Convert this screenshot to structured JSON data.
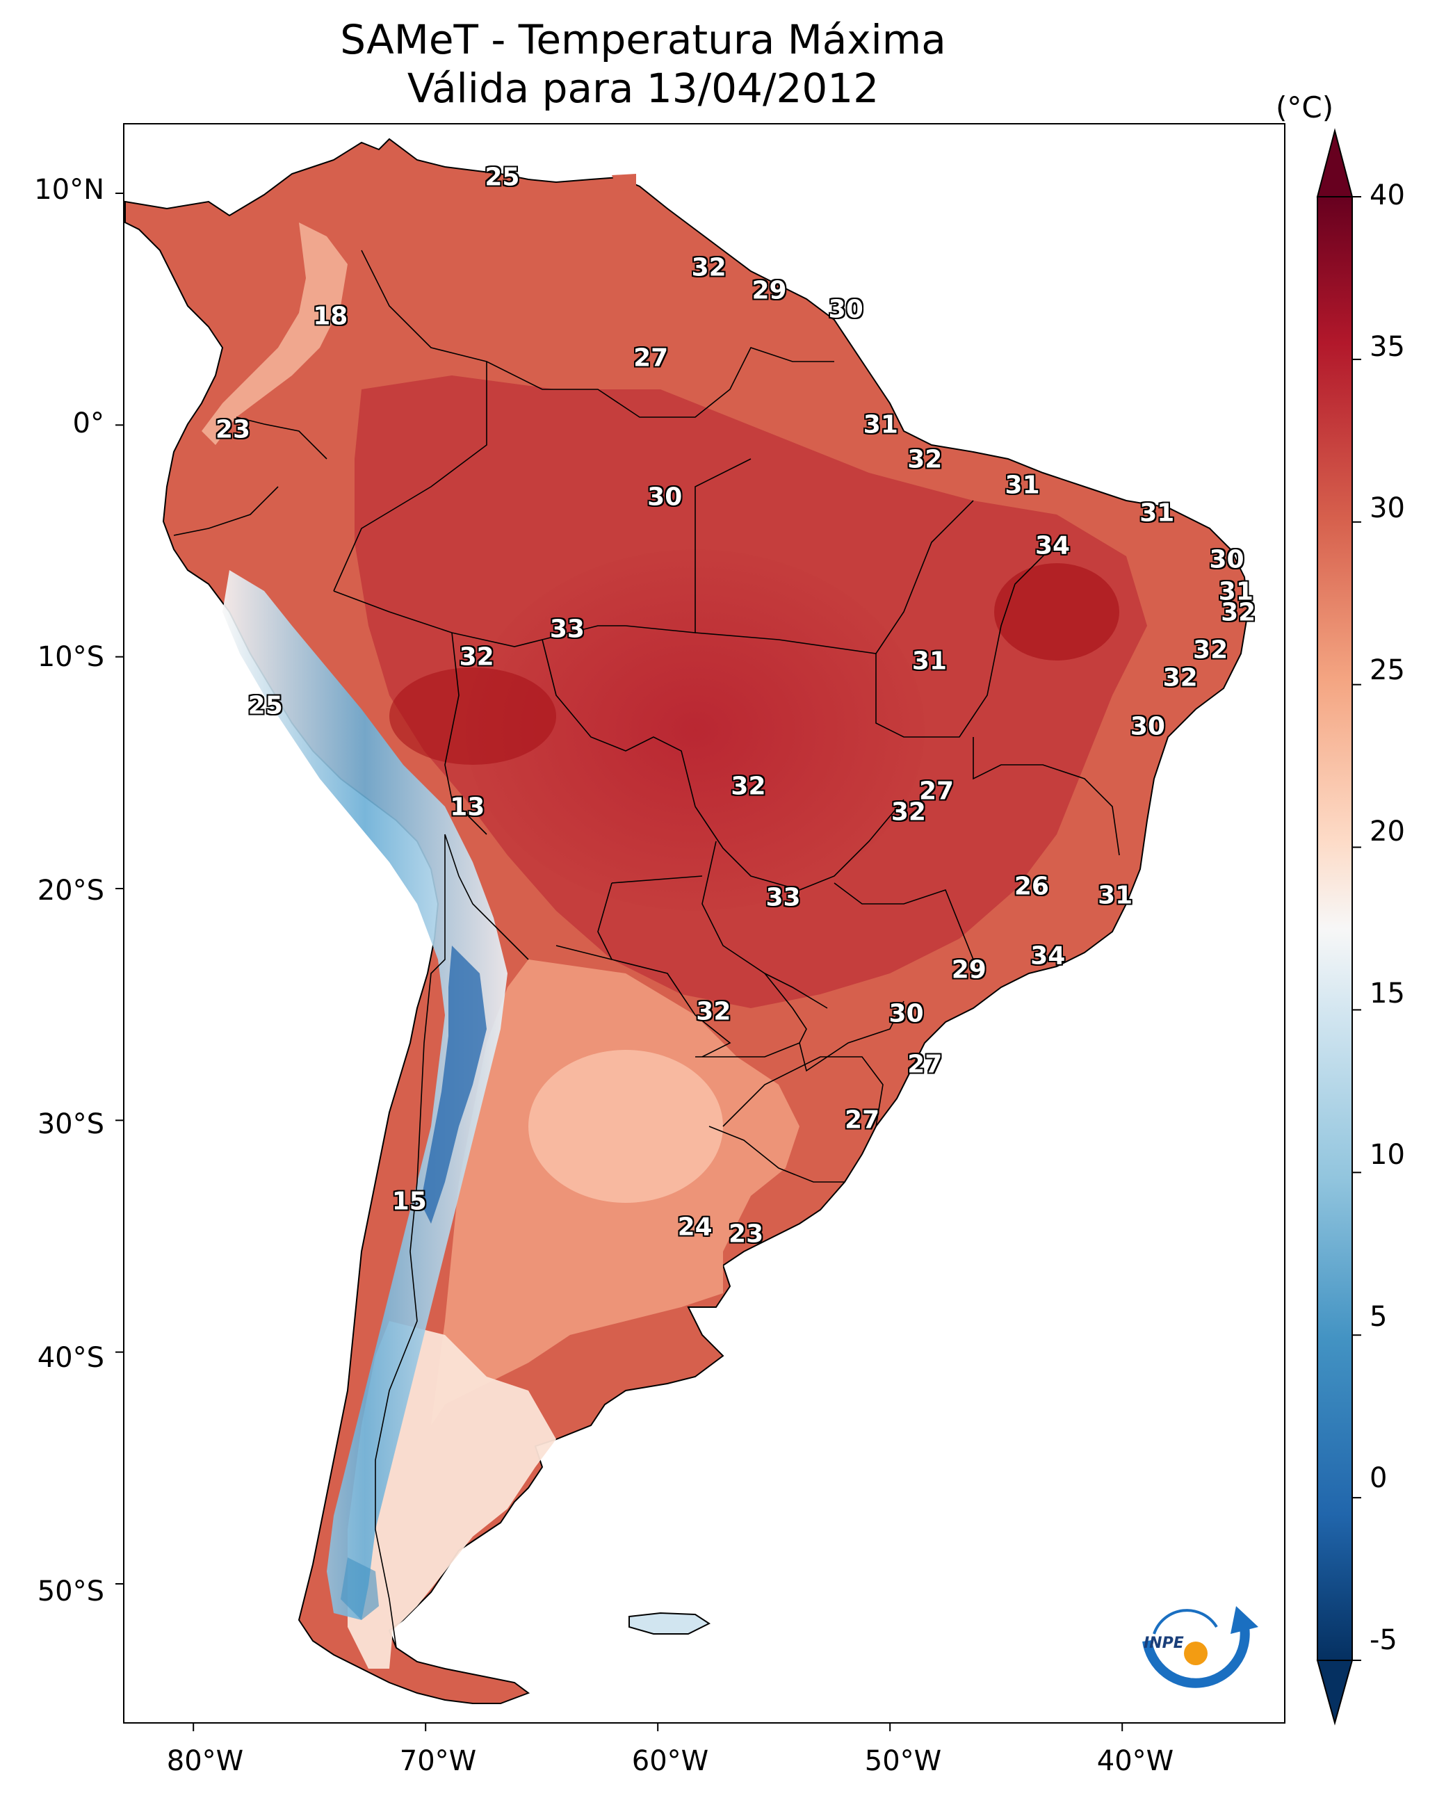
{
  "title": {
    "line1": "SAMeT - Temperatura Máxima",
    "line2": "Válida para 13/04/2012"
  },
  "colorbar": {
    "unit": "(°C)",
    "ticks": [
      "40",
      "35",
      "30",
      "25",
      "20",
      "15",
      "10",
      "5",
      "0",
      "-5"
    ],
    "range": [
      -5,
      40
    ],
    "colormap": "RdBu_r"
  },
  "axes": {
    "lat_ticks": [
      "10°N",
      "0°",
      "10°S",
      "20°S",
      "30°S",
      "40°S",
      "50°S"
    ],
    "lon_ticks": [
      "80°W",
      "70°W",
      "60°W",
      "50°W",
      "40°W"
    ],
    "extent": {
      "lon": [
        -83,
        -33
      ],
      "lat": [
        -56,
        13
      ]
    }
  },
  "station_values": [
    {
      "v": "25",
      "lon": -66.7,
      "lat": 10.7
    },
    {
      "v": "18",
      "lon": -74.1,
      "lat": 4.7
    },
    {
      "v": "32",
      "lon": -57.8,
      "lat": 6.8
    },
    {
      "v": "29",
      "lon": -55.2,
      "lat": 5.8
    },
    {
      "v": "30",
      "lon": -51.9,
      "lat": 5.0
    },
    {
      "v": "27",
      "lon": -60.3,
      "lat": 2.9
    },
    {
      "v": "23",
      "lon": -78.3,
      "lat": -0.2
    },
    {
      "v": "31",
      "lon": -50.4,
      "lat": 0.0
    },
    {
      "v": "32",
      "lon": -48.5,
      "lat": -1.5
    },
    {
      "v": "31",
      "lon": -44.3,
      "lat": -2.6
    },
    {
      "v": "30",
      "lon": -59.7,
      "lat": -3.1
    },
    {
      "v": "31",
      "lon": -38.5,
      "lat": -3.8
    },
    {
      "v": "34",
      "lon": -43.0,
      "lat": -5.2
    },
    {
      "v": "30",
      "lon": -35.5,
      "lat": -5.8
    },
    {
      "v": "31",
      "lon": -35.1,
      "lat": -7.2
    },
    {
      "v": "32",
      "lon": -35.0,
      "lat": -8.1
    },
    {
      "v": "33",
      "lon": -63.9,
      "lat": -8.8
    },
    {
      "v": "32",
      "lon": -67.8,
      "lat": -10.0
    },
    {
      "v": "31",
      "lon": -48.3,
      "lat": -10.2
    },
    {
      "v": "32",
      "lon": -36.2,
      "lat": -9.7
    },
    {
      "v": "32",
      "lon": -37.5,
      "lat": -10.9
    },
    {
      "v": "25",
      "lon": -76.9,
      "lat": -12.1
    },
    {
      "v": "30",
      "lon": -38.9,
      "lat": -13.0
    },
    {
      "v": "13",
      "lon": -68.2,
      "lat": -16.5
    },
    {
      "v": "27",
      "lon": -48.0,
      "lat": -15.8
    },
    {
      "v": "32",
      "lon": -56.1,
      "lat": -15.6
    },
    {
      "v": "32",
      "lon": -49.2,
      "lat": -16.7
    },
    {
      "v": "26",
      "lon": -43.9,
      "lat": -19.9
    },
    {
      "v": "31",
      "lon": -40.3,
      "lat": -20.3
    },
    {
      "v": "33",
      "lon": -54.6,
      "lat": -20.4
    },
    {
      "v": "34",
      "lon": -43.2,
      "lat": -22.9
    },
    {
      "v": "29",
      "lon": -46.6,
      "lat": -23.5
    },
    {
      "v": "32",
      "lon": -57.6,
      "lat": -25.3
    },
    {
      "v": "30",
      "lon": -49.3,
      "lat": -25.4
    },
    {
      "v": "27",
      "lon": -48.5,
      "lat": -27.6
    },
    {
      "v": "27",
      "lon": -51.2,
      "lat": -30.0
    },
    {
      "v": "15",
      "lon": -70.7,
      "lat": -33.5
    },
    {
      "v": "24",
      "lon": -58.4,
      "lat": -34.6
    },
    {
      "v": "23",
      "lon": -56.2,
      "lat": -34.9
    }
  ],
  "logo": {
    "text": "INPE"
  }
}
